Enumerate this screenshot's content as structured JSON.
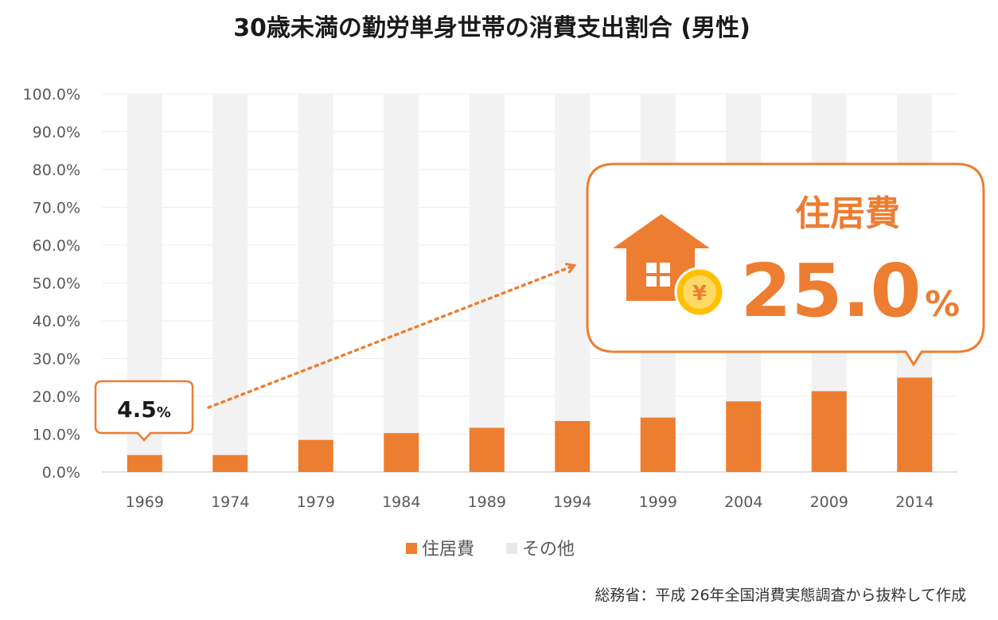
{
  "chart_data": {
    "type": "bar",
    "stacked": true,
    "title": "30歳未満の勤労単身世帯の消費支出割合 (男性)",
    "categories": [
      "1969",
      "1974",
      "1979",
      "1984",
      "1989",
      "1994",
      "1999",
      "2004",
      "2009",
      "2014"
    ],
    "series": [
      {
        "name": "住居費",
        "color": "#ED7D31",
        "values": [
          4.5,
          4.5,
          8.5,
          10.3,
          11.7,
          13.5,
          14.4,
          18.7,
          21.4,
          25.0
        ]
      },
      {
        "name": "その他",
        "color": "#F2F2F2",
        "values": [
          95.5,
          95.5,
          91.5,
          89.7,
          88.3,
          86.5,
          85.6,
          81.3,
          78.6,
          75.0
        ]
      }
    ],
    "ylim": [
      0,
      100
    ],
    "yticks": [
      "0.0%",
      "10.0%",
      "20.0%",
      "30.0%",
      "40.0%",
      "50.0%",
      "60.0%",
      "70.0%",
      "80.0%",
      "90.0%",
      "100.0%"
    ],
    "xlabel": "",
    "ylabel": "",
    "legend_position": "bottom",
    "grid": true
  },
  "callouts": {
    "start": {
      "value": "4.5",
      "unit": "%"
    },
    "end": {
      "label": "住居費",
      "value": "25.0",
      "unit": "%",
      "icon": "house-yen-icon",
      "yen_symbol": "¥"
    }
  },
  "source": "総務省：平成 26年全国消費実態調査から抜粋して作成"
}
